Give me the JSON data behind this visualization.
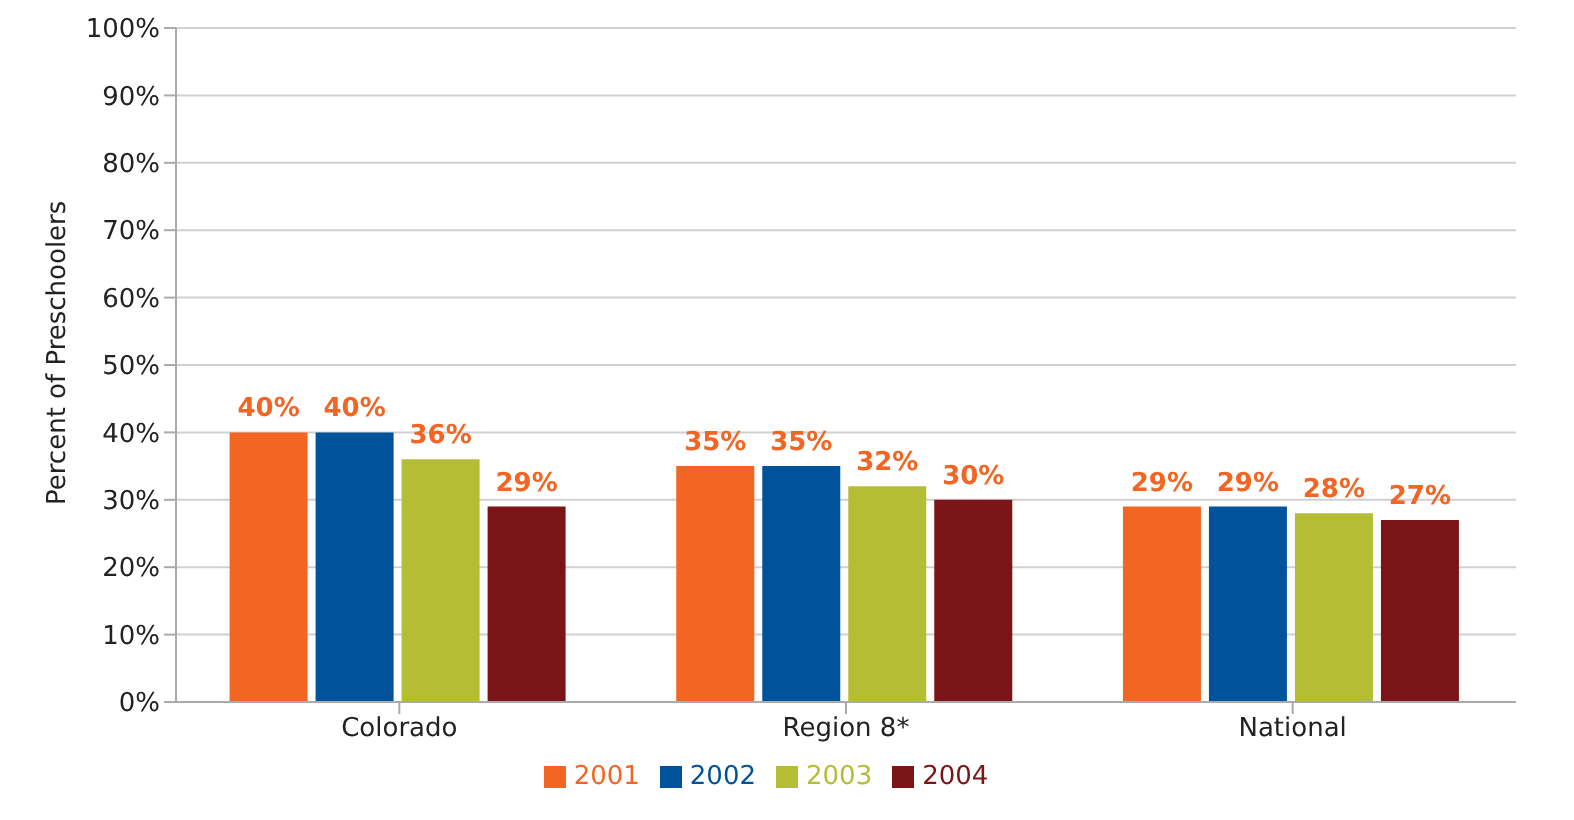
{
  "chart_data": {
    "type": "bar",
    "ylabel": "Percent of Preschoolers",
    "categories": [
      "Colorado",
      "Region 8*",
      "National"
    ],
    "series": [
      {
        "name": "2001",
        "color": "#f26522",
        "values": [
          40,
          35,
          29
        ],
        "value_labels": [
          "40%",
          "35%",
          "29%"
        ]
      },
      {
        "name": "2002",
        "color": "#00529b",
        "values": [
          40,
          35,
          29
        ],
        "value_labels": [
          "40%",
          "35%",
          "29%"
        ]
      },
      {
        "name": "2003",
        "color": "#b5bd35",
        "values": [
          36,
          32,
          28
        ],
        "value_labels": [
          "36%",
          "32%",
          "28%"
        ]
      },
      {
        "name": "2004",
        "color": "#7b1416",
        "values": [
          29,
          30,
          27
        ],
        "value_labels": [
          "29%",
          "30%",
          "27%"
        ]
      }
    ],
    "ylim": [
      0,
      100
    ],
    "yticks": [
      {
        "value": 0,
        "label": "0%"
      },
      {
        "value": 10,
        "label": "10%"
      },
      {
        "value": 20,
        "label": "20%"
      },
      {
        "value": 30,
        "label": "30%"
      },
      {
        "value": 40,
        "label": "40%"
      },
      {
        "value": 50,
        "label": "50%"
      },
      {
        "value": 60,
        "label": "60%"
      },
      {
        "value": 70,
        "label": "70%"
      },
      {
        "value": 80,
        "label": "80%"
      },
      {
        "value": 90,
        "label": "90%"
      },
      {
        "value": 100,
        "label": "100%"
      }
    ],
    "grid": "y",
    "legend": "bottom"
  }
}
